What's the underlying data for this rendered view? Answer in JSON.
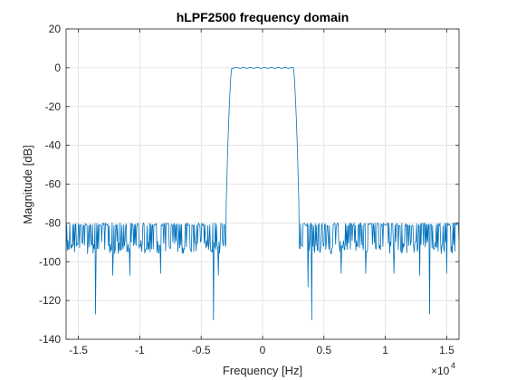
{
  "chart_data": {
    "type": "line",
    "title": "hLPF2500 frequency domain",
    "xlabel": "Frequency [Hz]",
    "ylabel": "Magnitude [dB]",
    "x_multiplier_label": "×10",
    "x_multiplier_exponent": "4",
    "xlim": [
      -16000,
      16000
    ],
    "ylim": [
      -140,
      20
    ],
    "x_ticks": [
      -15000,
      -10000,
      -5000,
      0,
      5000,
      10000,
      15000
    ],
    "x_tick_labels": [
      "-1.5",
      "-1",
      "-0.5",
      "0",
      "0.5",
      "1",
      "1.5"
    ],
    "y_ticks": [
      -140,
      -120,
      -100,
      -80,
      -60,
      -40,
      -20,
      0,
      20
    ],
    "y_tick_labels": [
      "-140",
      "-120",
      "-100",
      "-80",
      "-60",
      "-40",
      "-20",
      "0",
      "20"
    ],
    "grid": true,
    "line_color": "#0072bd",
    "passband": {
      "edge_hz": 2500,
      "level_db": 0
    },
    "transition": {
      "stop_edge_hz": 3000
    },
    "stopband": {
      "upper_db": -80,
      "typical_floor_db": -96,
      "deep_nulls": [
        {
          "x": -13600,
          "y": -127
        },
        {
          "x": -12200,
          "y": -107
        },
        {
          "x": -10800,
          "y": -107
        },
        {
          "x": -8300,
          "y": -106
        },
        {
          "x": -4000,
          "y": -130
        },
        {
          "x": -3600,
          "y": -107
        },
        {
          "x": 3700,
          "y": -113
        },
        {
          "x": 4000,
          "y": -130
        },
        {
          "x": 6400,
          "y": -106
        },
        {
          "x": 8400,
          "y": -106
        },
        {
          "x": 10700,
          "y": -106
        },
        {
          "x": 12800,
          "y": -107
        },
        {
          "x": 13600,
          "y": -127
        },
        {
          "x": 15000,
          "y": -106
        }
      ]
    }
  }
}
